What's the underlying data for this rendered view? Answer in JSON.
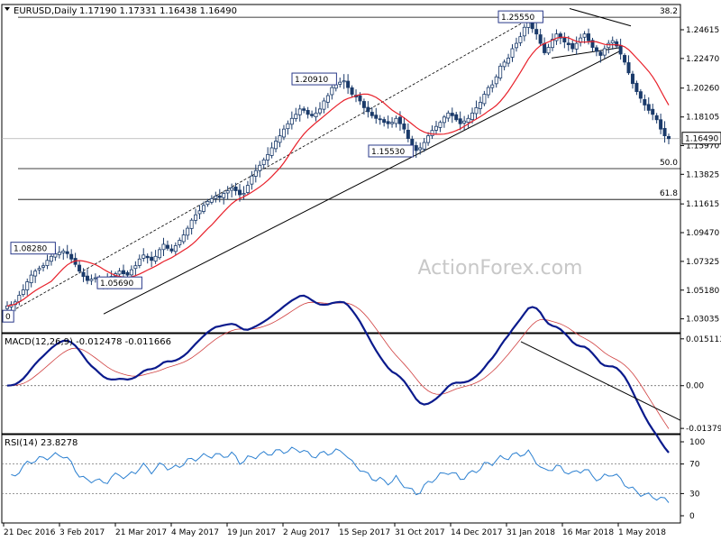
{
  "header": {
    "symbol": "EURUSD,Daily",
    "ohlc": "1.17190 1.17331 1.16438 1.16490"
  },
  "watermark": "ActionForex.com",
  "colors": {
    "candle": "#1a3a6a",
    "sma": "#e8202a",
    "macd": "#0a1a8c",
    "signal": "#d04040",
    "rsi": "#2a7fd0"
  },
  "chart_data": [
    {
      "type": "candlestick",
      "name": "EURUSD Daily",
      "y_ticks": [
        "1.24615",
        "1.22470",
        "1.20260",
        "1.18105",
        "1.15970",
        "1.13825",
        "1.11615",
        "1.09470",
        "1.07325",
        "1.05180",
        "1.03035"
      ],
      "ylim": [
        1.02,
        1.265
      ],
      "current_price": "1.16490",
      "fibonacci": [
        {
          "label": "38.2",
          "value": 1.2555
        },
        {
          "label": "50.0",
          "value": 1.1425
        },
        {
          "label": "61.8",
          "value": 1.1195
        }
      ],
      "callouts": [
        {
          "label": "1.25550",
          "value": 1.2555
        },
        {
          "label": "1.20910",
          "value": 1.2091
        },
        {
          "label": "1.15530",
          "value": 1.1553
        },
        {
          "label": "1.08280",
          "value": 1.0828
        },
        {
          "label": "1.05690",
          "value": 1.0569
        },
        {
          "label": "0",
          "value": 1.032
        }
      ],
      "close_series": [
        1.04,
        1.041,
        1.043,
        1.048,
        1.052,
        1.058,
        1.063,
        1.066,
        1.068,
        1.07,
        1.074,
        1.077,
        1.079,
        1.08,
        1.081,
        1.079,
        1.075,
        1.071,
        1.066,
        1.062,
        1.059,
        1.06,
        1.061,
        1.058,
        1.057,
        1.059,
        1.062,
        1.064,
        1.066,
        1.064,
        1.063,
        1.067,
        1.07,
        1.075,
        1.078,
        1.076,
        1.074,
        1.077,
        1.082,
        1.086,
        1.083,
        1.081,
        1.085,
        1.089,
        1.093,
        1.098,
        1.104,
        1.108,
        1.111,
        1.115,
        1.118,
        1.12,
        1.122,
        1.121,
        1.124,
        1.126,
        1.128,
        1.126,
        1.123,
        1.124,
        1.13,
        1.137,
        1.141,
        1.145,
        1.149,
        1.153,
        1.158,
        1.163,
        1.167,
        1.172,
        1.176,
        1.18,
        1.183,
        1.187,
        1.186,
        1.183,
        1.182,
        1.184,
        1.187,
        1.193,
        1.197,
        1.203,
        1.205,
        1.207,
        1.208,
        1.203,
        1.198,
        1.196,
        1.193,
        1.188,
        1.185,
        1.182,
        1.18,
        1.179,
        1.177,
        1.176,
        1.177,
        1.18,
        1.176,
        1.172,
        1.165,
        1.16,
        1.156,
        1.158,
        1.162,
        1.167,
        1.171,
        1.174,
        1.177,
        1.181,
        1.184,
        1.182,
        1.179,
        1.176,
        1.178,
        1.18,
        1.184,
        1.188,
        1.192,
        1.198,
        1.203,
        1.205,
        1.211,
        1.219,
        1.222,
        1.225,
        1.232,
        1.236,
        1.241,
        1.248,
        1.252,
        1.247,
        1.243,
        1.236,
        1.229,
        1.233,
        1.239,
        1.243,
        1.24,
        1.237,
        1.235,
        1.232,
        1.236,
        1.24,
        1.243,
        1.238,
        1.233,
        1.23,
        1.227,
        1.232,
        1.236,
        1.238,
        1.234,
        1.228,
        1.222,
        1.214,
        1.206,
        1.2,
        1.195,
        1.19,
        1.186,
        1.183,
        1.179,
        1.172,
        1.167,
        1.1649
      ]
    },
    {
      "type": "line",
      "name": "MACD(12,26,9)",
      "header_values": "-0.012478 -0.011666",
      "y_ticks": [
        "0.015113",
        "0.00",
        "-0.013791"
      ],
      "ylim": [
        -0.0155,
        0.0168
      ]
    },
    {
      "type": "line",
      "name": "RSI(14)",
      "header_values": "23.8278",
      "y_ticks": [
        "100",
        "70",
        "30",
        "0"
      ],
      "ylim": [
        0,
        100
      ],
      "reference_levels": [
        70,
        30
      ]
    }
  ],
  "x_ticks": [
    "21 Dec 2016",
    "3 Feb 2017",
    "21 Mar 2017",
    "4 May 2017",
    "19 Jun 2017",
    "2 Aug 2017",
    "15 Sep 2017",
    "31 Oct 2017",
    "14 Dec 2017",
    "31 Jan 2018",
    "16 Mar 2018",
    "1 May 2018"
  ]
}
